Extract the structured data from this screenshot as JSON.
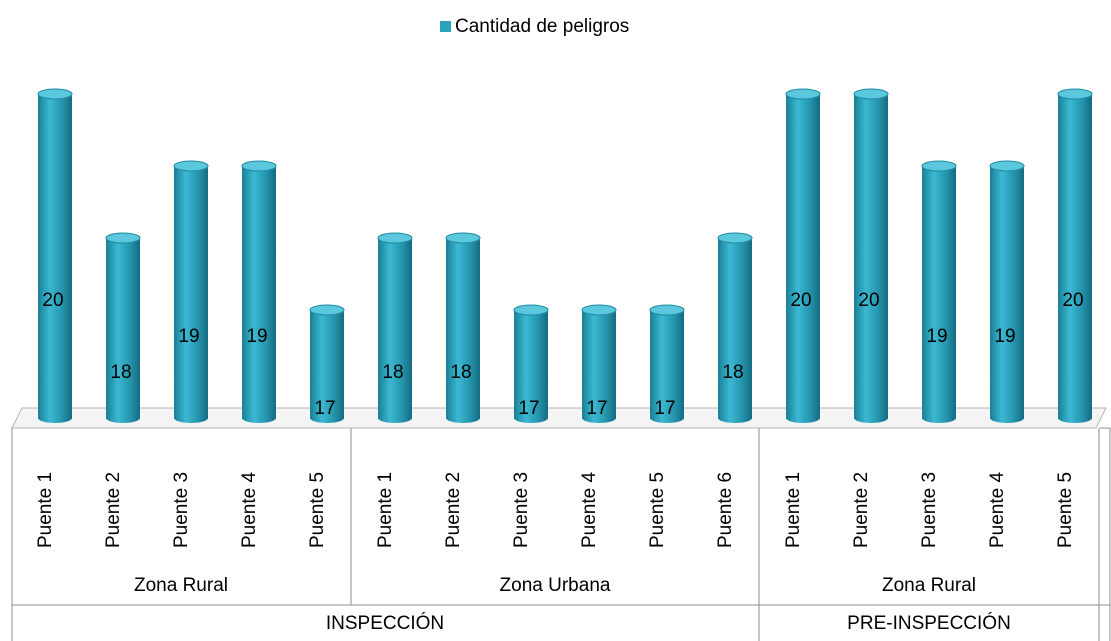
{
  "chart_data": {
    "type": "bar",
    "legend": "top",
    "ylim": [
      15.5,
      20.5
    ],
    "series": [
      {
        "name": "Cantidad de peligros",
        "color": "#2ea3bd",
        "values": [
          20,
          18,
          19,
          19,
          17,
          18,
          18,
          17,
          17,
          17,
          18,
          20,
          20,
          19,
          19,
          20
        ]
      }
    ],
    "groups": [
      {
        "name": "INSPECCIÓN",
        "subgroups": [
          {
            "name": "Zona Rural",
            "categories": [
              "Puente 1",
              "Puente 2",
              "Puente 3",
              "Puente 4",
              "Puente 5"
            ]
          },
          {
            "name": "Zona Urbana",
            "categories": [
              "Puente 1",
              "Puente 2",
              "Puente 3",
              "Puente 4",
              "Puente 5",
              "Puente 6"
            ]
          }
        ]
      },
      {
        "name": "PRE-INSPECCIÓN",
        "subgroups": [
          {
            "name": "Zona Rural",
            "categories": [
              "Puente 1",
              "Puente 2",
              "Puente 3",
              "Puente 4",
              "Puente 5"
            ]
          }
        ]
      }
    ]
  }
}
